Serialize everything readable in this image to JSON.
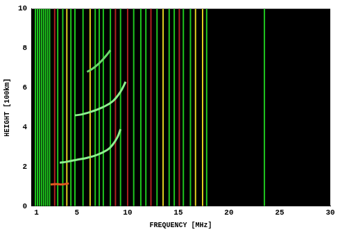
{
  "chart_data": {
    "type": "line",
    "x_label": "FREQUENCY [MHz]",
    "y_label": "HEIGHT [100km]",
    "xlim": [
      0.5,
      30
    ],
    "xticks": [
      1,
      5,
      10,
      15,
      20,
      25,
      30
    ],
    "ylim": [
      0,
      10
    ],
    "yticks": [
      0,
      2,
      4,
      6,
      8,
      10
    ],
    "grid": false,
    "interference": [
      {
        "color": "#1fc81f",
        "x": [
          0.9,
          1.1,
          1.3,
          1.5,
          1.7,
          1.9,
          2.1,
          2.3,
          3.1,
          3.6,
          4.4,
          4.8,
          5.6,
          6.8,
          7.2,
          7.6,
          8.3,
          9.3,
          10.6,
          11.3,
          11.8,
          12.9,
          14.1,
          14.6,
          15.5,
          16.2,
          17.8,
          23.5
        ]
      },
      {
        "color": "#e0d020",
        "x": [
          4.0,
          6.3,
          13.5,
          16.7,
          17.4
        ]
      },
      {
        "color": "#b02020",
        "x": [
          2.8,
          8.8,
          10.0,
          12.3,
          15.1
        ]
      }
    ],
    "series": [
      {
        "color": "#e05a20",
        "x": [
          2.4,
          3.0,
          3.5,
          4.2
        ],
        "y": [
          1.1,
          1.12,
          1.1,
          1.15
        ]
      },
      {
        "color": "#8cf08c",
        "x": [
          3.3,
          4.0,
          5.0,
          6.0,
          7.0,
          8.0,
          8.5,
          9.0,
          9.3
        ],
        "y": [
          2.2,
          2.25,
          2.35,
          2.45,
          2.6,
          2.85,
          3.1,
          3.5,
          3.9
        ]
      },
      {
        "color": "#8cf08c",
        "x": [
          4.8,
          5.5,
          6.5,
          7.5,
          8.5,
          9.3,
          9.8
        ],
        "y": [
          4.6,
          4.65,
          4.8,
          5.0,
          5.3,
          5.8,
          6.3
        ]
      },
      {
        "color": "#6cd86c",
        "x": [
          6.0,
          6.5,
          7.0,
          7.5,
          8.0,
          8.3
        ],
        "y": [
          6.8,
          6.95,
          7.15,
          7.4,
          7.7,
          7.9
        ]
      }
    ]
  }
}
